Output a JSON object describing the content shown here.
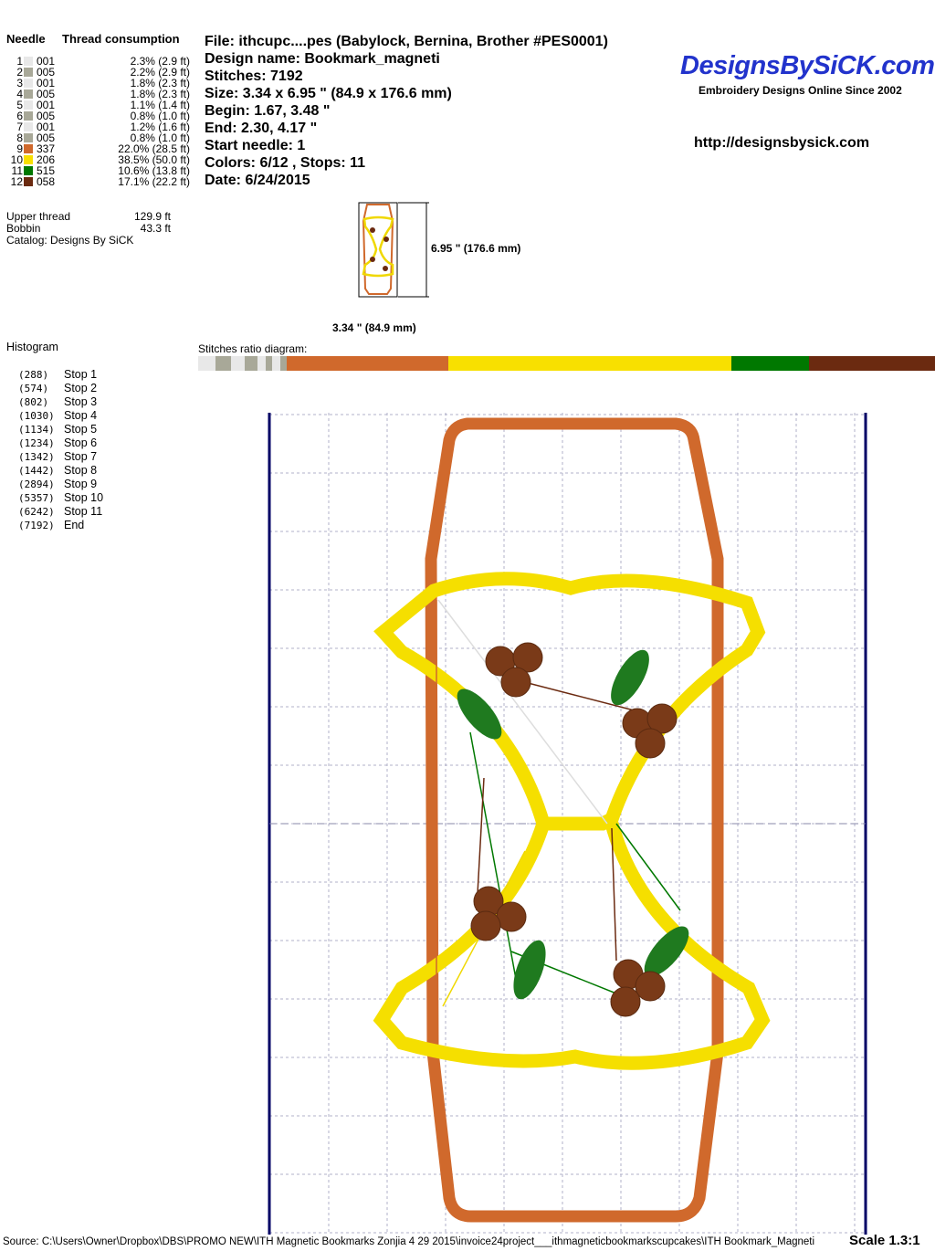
{
  "needle_table": {
    "header_needle": "Needle",
    "header_consumption": "Thread consumption",
    "rows": [
      {
        "n": "1",
        "code": "001",
        "color": "#e8e8e8",
        "pct": "2.3% (2.9 ft)",
        "ratio": 2.3
      },
      {
        "n": "2",
        "code": "005",
        "color": "#a8a898",
        "pct": "2.2% (2.9 ft)",
        "ratio": 2.2
      },
      {
        "n": "3",
        "code": "001",
        "color": "#e8e8e8",
        "pct": "1.8% (2.3 ft)",
        "ratio": 1.8
      },
      {
        "n": "4",
        "code": "005",
        "color": "#a8a898",
        "pct": "1.8% (2.3 ft)",
        "ratio": 1.8
      },
      {
        "n": "5",
        "code": "001",
        "color": "#e8e8e8",
        "pct": "1.1% (1.4 ft)",
        "ratio": 1.1
      },
      {
        "n": "6",
        "code": "005",
        "color": "#a8a898",
        "pct": "0.8% (1.0 ft)",
        "ratio": 0.8
      },
      {
        "n": "7",
        "code": "001",
        "color": "#e8e8e8",
        "pct": "1.2% (1.6 ft)",
        "ratio": 1.2
      },
      {
        "n": "8",
        "code": "005",
        "color": "#a8a898",
        "pct": "0.8% (1.0 ft)",
        "ratio": 0.8
      },
      {
        "n": "9",
        "code": "337",
        "color": "#d0692c",
        "pct": "22.0% (28.5 ft)",
        "ratio": 22.0
      },
      {
        "n": "10",
        "code": "206",
        "color": "#f8e000",
        "pct": "38.5% (50.0 ft)",
        "ratio": 38.5
      },
      {
        "n": "11",
        "code": "515",
        "color": "#007800",
        "pct": "10.6% (13.8 ft)",
        "ratio": 10.6
      },
      {
        "n": "12",
        "code": "058",
        "color": "#6b2a10",
        "pct": "17.1% (22.2 ft)",
        "ratio": 17.1
      }
    ],
    "upper_thread_label": "Upper thread",
    "upper_thread": "129.9 ft",
    "bobbin_label": "Bobbin",
    "bobbin": "43.3 ft",
    "catalog": "Catalog: Designs By SiCK"
  },
  "info": {
    "file": "File: ithcupc....pes  (Babylock, Bernina, Brother #PES0001)",
    "design_name": "Design name: Bookmark_magneti",
    "stitches": "Stitches: 7192",
    "size": "Size: 3.34 x 6.95 \" (84.9 x 176.6 mm)",
    "begin": "Begin: 1.67, 3.48 \"",
    "end": "End: 2.30, 4.17 \"",
    "start_needle": "Start needle: 1",
    "colors": "Colors: 6/12 , Stops: 11",
    "date": "Date: 6/24/2015"
  },
  "brand": {
    "logo": "DesignsBySiCK.com",
    "tagline": "Embroidery Designs Online Since 2002",
    "url": "http://designsbysick.com",
    "color": "#2233cc"
  },
  "thumb": {
    "height": "6.95 \" (176.6 mm)",
    "width": "3.34 \" (84.9 mm)"
  },
  "histogram": {
    "title": "Histogram",
    "rows": [
      {
        "count": "(288)",
        "label": "Stop 1"
      },
      {
        "count": "(574)",
        "label": "Stop 2"
      },
      {
        "count": "(802)",
        "label": "Stop 3"
      },
      {
        "count": "(1030)",
        "label": "Stop 4"
      },
      {
        "count": "(1134)",
        "label": "Stop 5"
      },
      {
        "count": "(1234)",
        "label": "Stop 6"
      },
      {
        "count": "(1342)",
        "label": "Stop 7"
      },
      {
        "count": "(1442)",
        "label": "Stop 8"
      },
      {
        "count": "(2894)",
        "label": "Stop 9"
      },
      {
        "count": "(5357)",
        "label": "Stop 10"
      },
      {
        "count": "(6242)",
        "label": "Stop 11"
      },
      {
        "count": "(7192)",
        "label": "End"
      }
    ]
  },
  "ratio_label": "Stitches ratio diagram:",
  "footer": {
    "source": "Source: C:\\Users\\Owner\\Dropbox\\DBS\\PROMO NEW\\ITH Magnetic Bookmarks  Zonjia 4 29 2015\\invoice24project___ithmagneticbookmarkscupcakes\\ITH Bookmark_Magneti",
    "scale": "Scale 1.3:1"
  }
}
